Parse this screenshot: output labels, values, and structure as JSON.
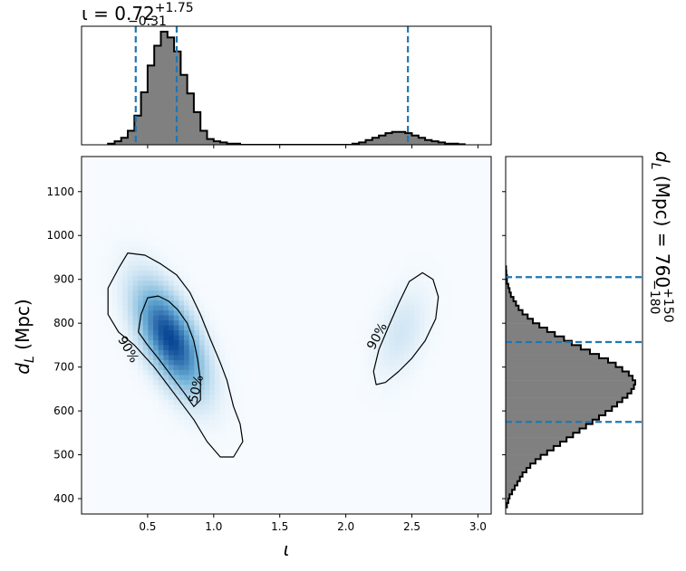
{
  "chart_data": {
    "type": "corner_plot",
    "top_marginal": {
      "title_main": "ι = 0.72",
      "title_sup": "+1.75",
      "title_sub": "−0.31",
      "xlim": [
        0.0,
        3.1
      ],
      "quantile_lines": [
        0.41,
        0.72,
        2.47
      ],
      "hist": {
        "bin_start": 0.2,
        "bin_width": 0.05,
        "heights": [
          0.01,
          0.03,
          0.06,
          0.12,
          0.25,
          0.45,
          0.68,
          0.85,
          0.97,
          0.92,
          0.8,
          0.6,
          0.44,
          0.28,
          0.12,
          0.05,
          0.03,
          0.02,
          0.01,
          0.01,
          0,
          0,
          0,
          0,
          0,
          0,
          0,
          0,
          0,
          0,
          0,
          0,
          0,
          0,
          0,
          0,
          0,
          0.01,
          0.02,
          0.04,
          0.06,
          0.08,
          0.1,
          0.11,
          0.11,
          0.1,
          0.08,
          0.06,
          0.04,
          0.03,
          0.02,
          0.01,
          0.01,
          0.005
        ]
      },
      "fill_color": "#808080",
      "line_color": "#1f77b4"
    },
    "joint": {
      "type": "heatmap_contour",
      "xlabel": "ι",
      "ylabel_base": "d",
      "ylabel_sub": "L",
      "ylabel_unit": " (Mpc)",
      "xlim": [
        0.0,
        3.1
      ],
      "ylim": [
        365,
        1180
      ],
      "xticks": [
        0.5,
        1.0,
        1.5,
        2.0,
        2.5,
        3.0
      ],
      "xtick_labels": [
        "0.5",
        "1.0",
        "1.5",
        "2.0",
        "2.5",
        "3.0"
      ],
      "yticks": [
        400,
        500,
        600,
        700,
        800,
        900,
        1000,
        1100
      ],
      "ytick_labels": [
        "400",
        "500",
        "600",
        "700",
        "800",
        "900",
        "1000",
        "1100"
      ],
      "density_modes": [
        {
          "x": 0.67,
          "y": 765,
          "sx": 0.15,
          "sy": 70,
          "rho": -0.6,
          "w": 1.0
        },
        {
          "x": 2.42,
          "y": 780,
          "sx": 0.12,
          "sy": 60,
          "rho": 0.4,
          "w": 0.08
        }
      ],
      "contours": [
        {
          "label": "90%",
          "points": [
            [
              0.28,
              925
            ],
            [
              0.35,
              960
            ],
            [
              0.48,
              955
            ],
            [
              0.6,
              935
            ],
            [
              0.72,
              910
            ],
            [
              0.82,
              870
            ],
            [
              0.9,
              820
            ],
            [
              0.98,
              760
            ],
            [
              1.05,
              710
            ],
            [
              1.1,
              670
            ],
            [
              1.15,
              610
            ],
            [
              1.2,
              570
            ],
            [
              1.22,
              530
            ],
            [
              1.15,
              495
            ],
            [
              1.05,
              495
            ],
            [
              0.95,
              530
            ],
            [
              0.85,
              580
            ],
            [
              0.7,
              640
            ],
            [
              0.55,
              700
            ],
            [
              0.4,
              750
            ],
            [
              0.28,
              780
            ],
            [
              0.2,
              820
            ],
            [
              0.2,
              880
            ]
          ]
        },
        {
          "label": "50%",
          "points": [
            [
              0.45,
              820
            ],
            [
              0.5,
              858
            ],
            [
              0.58,
              862
            ],
            [
              0.66,
              850
            ],
            [
              0.73,
              830
            ],
            [
              0.8,
              800
            ],
            [
              0.85,
              760
            ],
            [
              0.88,
              715
            ],
            [
              0.9,
              670
            ],
            [
              0.9,
              625
            ],
            [
              0.85,
              610
            ],
            [
              0.78,
              640
            ],
            [
              0.68,
              680
            ],
            [
              0.58,
              720
            ],
            [
              0.5,
              750
            ],
            [
              0.43,
              780
            ]
          ]
        },
        {
          "label": "90%",
          "points": [
            [
              2.48,
              895
            ],
            [
              2.58,
              915
            ],
            [
              2.66,
              900
            ],
            [
              2.7,
              860
            ],
            [
              2.68,
              810
            ],
            [
              2.6,
              760
            ],
            [
              2.5,
              720
            ],
            [
              2.4,
              690
            ],
            [
              2.3,
              665
            ],
            [
              2.23,
              660
            ],
            [
              2.21,
              690
            ],
            [
              2.25,
              740
            ],
            [
              2.32,
              790
            ],
            [
              2.4,
              845
            ]
          ]
        }
      ],
      "contour_labels": [
        {
          "text": "90%",
          "x": 0.35,
          "y": 740,
          "angle": 60
        },
        {
          "text": "50%",
          "x": 0.87,
          "y": 650,
          "angle": -77
        },
        {
          "text": "90%",
          "x": 2.24,
          "y": 770,
          "angle": -62
        }
      ]
    },
    "right_marginal": {
      "title_base": "d",
      "title_sub": "L",
      "title_main": " (Mpc) = 760",
      "title_sup": "+150",
      "title_sub2": "−180",
      "ylim": [
        365,
        1180
      ],
      "quantile_lines": [
        575,
        757,
        905
      ],
      "hist": {
        "bin_start": 380,
        "bin_width": 10,
        "heights": [
          0.01,
          0.02,
          0.03,
          0.05,
          0.07,
          0.09,
          0.11,
          0.13,
          0.16,
          0.19,
          0.23,
          0.27,
          0.32,
          0.37,
          0.42,
          0.47,
          0.52,
          0.57,
          0.62,
          0.67,
          0.72,
          0.77,
          0.82,
          0.86,
          0.9,
          0.94,
          0.97,
          0.99,
          1.0,
          0.98,
          0.95,
          0.9,
          0.85,
          0.79,
          0.72,
          0.65,
          0.58,
          0.51,
          0.45,
          0.38,
          0.32,
          0.26,
          0.21,
          0.17,
          0.13,
          0.1,
          0.08,
          0.06,
          0.04,
          0.03,
          0.02,
          0.01,
          0.01,
          0.005,
          0.003
        ]
      },
      "fill_color": "#808080",
      "line_color": "#1f77b4"
    }
  }
}
